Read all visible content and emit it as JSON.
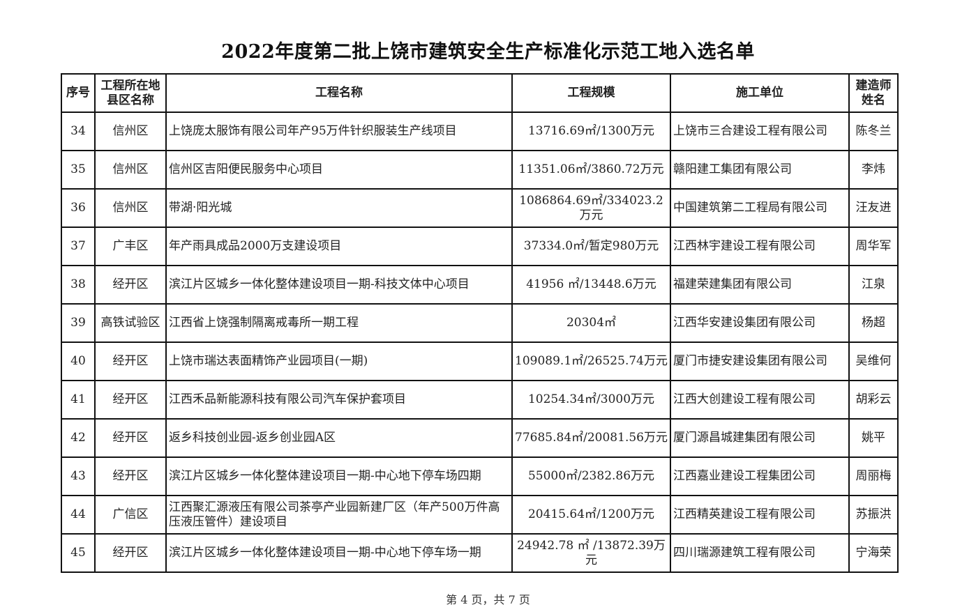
{
  "title": "2022年度第二批上饶市建筑安全生产标准化示范工地入选名单",
  "table": {
    "headers": [
      "序号",
      "工程所在地县区名称",
      "工程名称",
      "工程规模",
      "施工单位",
      "建造师姓名"
    ],
    "rows": [
      {
        "no": "34",
        "district": "信州区",
        "project": "上饶庞太服饰有限公司年产95万件针织服装生产线项目",
        "scale": "13716.69㎡/1300万元",
        "company": "上饶市三合建设工程有限公司",
        "builder": "陈冬兰"
      },
      {
        "no": "35",
        "district": "信州区",
        "project": "信州区吉阳便民服务中心项目",
        "scale": "11351.06㎡/3860.72万元",
        "company": "赣阳建工集团有限公司",
        "builder": "李炜"
      },
      {
        "no": "36",
        "district": "信州区",
        "project": "带湖·阳光城",
        "scale": "1086864.69㎡/334023.2万元",
        "company": "中国建筑第二工程局有限公司",
        "builder": "汪友进"
      },
      {
        "no": "37",
        "district": "广丰区",
        "project": "年产雨具成品2000万支建设项目",
        "scale": "37334.0㎡/暂定980万元",
        "company": "江西林宇建设工程有限公司",
        "builder": "周华军"
      },
      {
        "no": "38",
        "district": "经开区",
        "project": "滨江片区城乡一体化整体建设项目一期-科技文体中心项目",
        "scale": "41956 ㎡/13448.6万元",
        "company": "福建荣建集团有限公司",
        "builder": "江泉"
      },
      {
        "no": "39",
        "district": "高铁试验区",
        "project": "江西省上饶强制隔离戒毒所一期工程",
        "scale": "20304㎡",
        "company": "江西华安建设集团有限公司",
        "builder": "杨超"
      },
      {
        "no": "40",
        "district": "经开区",
        "project": "上饶市瑞达表面精饰产业园项目(一期)",
        "scale": "109089.1㎡/26525.74万元",
        "company": "厦门市捷安建设集团有限公司",
        "builder": "吴维何"
      },
      {
        "no": "41",
        "district": "经开区",
        "project": "江西禾品新能源科技有限公司汽车保护套项目",
        "scale": "10254.34㎡/3000万元",
        "company": "江西大创建设工程有限公司",
        "builder": "胡彩云"
      },
      {
        "no": "42",
        "district": "经开区",
        "project": "返乡科技创业园-返乡创业园A区",
        "scale": "77685.84㎡/20081.56万元",
        "company": "厦门源昌城建集团有限公司",
        "builder": "姚平"
      },
      {
        "no": "43",
        "district": "经开区",
        "project": "滨江片区城乡一体化整体建设项目一期-中心地下停车场四期",
        "scale": "55000㎡/2382.86万元",
        "company": "江西嘉业建设工程集团公司",
        "builder": "周丽梅"
      },
      {
        "no": "44",
        "district": "广信区",
        "project": "江西聚汇源液压有限公司茶亭产业园新建厂区（年产500万件高压液压管件）建设项目",
        "scale": "20415.64㎡/1200万元",
        "company": "江西精英建设工程有限公司",
        "builder": "苏振洪"
      },
      {
        "no": "45",
        "district": "经开区",
        "project": "滨江片区城乡一体化整体建设项目一期-中心地下停车场一期",
        "scale": "24942.78 ㎡ /13872.39万元",
        "company": "四川瑞源建筑工程有限公司",
        "builder": "宁海荣"
      }
    ]
  },
  "footer": "第 4 页，共 7 页"
}
